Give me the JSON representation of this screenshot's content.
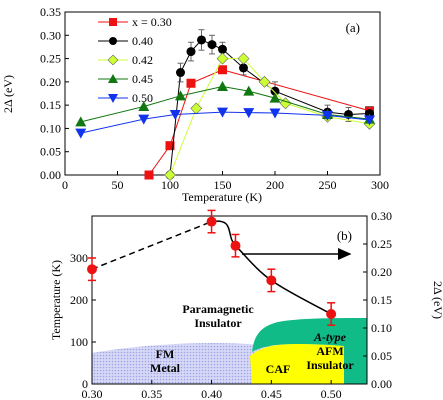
{
  "chart_data": [
    {
      "panel_label": "(a)",
      "type": "line",
      "xlabel": "Temperature (K)",
      "ylabel": "2Δ (eV)",
      "xlim": [
        0,
        300
      ],
      "ylim": [
        0.0,
        0.35
      ],
      "xticks": [
        "0",
        "50",
        "100",
        "150",
        "200",
        "250",
        "300"
      ],
      "yticks": [
        "0.00",
        "0.05",
        "0.10",
        "0.15",
        "0.20",
        "0.25",
        "0.30",
        "0.35"
      ],
      "legend_position": "top-left",
      "legend_prefix": "x = ",
      "series": [
        {
          "name": "0.30",
          "color": "#ee1111",
          "marker": "square",
          "points": [
            [
              80,
              0.0
            ],
            [
              100,
              0.063
            ],
            [
              120,
              0.197
            ],
            [
              150,
              0.226
            ],
            [
              290,
              0.138
            ]
          ]
        },
        {
          "name": "0.40",
          "color": "#000000",
          "marker": "circle",
          "points": [
            [
              100,
              0.0
            ],
            [
              110,
              0.22
            ],
            [
              120,
              0.265
            ],
            [
              130,
              0.29
            ],
            [
              140,
              0.28
            ],
            [
              150,
              0.27
            ],
            [
              170,
              0.23
            ],
            [
              200,
              0.18
            ],
            [
              250,
              0.135
            ],
            [
              270,
              0.13
            ],
            [
              290,
              0.132
            ]
          ],
          "errors": [
            0,
            0.02,
            0.02,
            0.022,
            0.02,
            0.015,
            0.015,
            0.02,
            0.015,
            0.015,
            0.015
          ]
        },
        {
          "name": "0.42",
          "color": "#ccff33",
          "marker": "diamond",
          "points": [
            [
              100,
              0.0
            ],
            [
              125,
              0.143
            ],
            [
              150,
              0.25
            ],
            [
              170,
              0.25
            ],
            [
              190,
              0.2
            ],
            [
              210,
              0.154
            ],
            [
              250,
              0.125
            ],
            [
              290,
              0.11
            ]
          ]
        },
        {
          "name": "0.45",
          "color": "#117711",
          "marker": "triangle-up",
          "points": [
            [
              15,
              0.114
            ],
            [
              75,
              0.147
            ],
            [
              110,
              0.17
            ],
            [
              150,
              0.19
            ],
            [
              175,
              0.18
            ],
            [
              200,
              0.165
            ],
            [
              250,
              0.13
            ],
            [
              290,
              0.12
            ]
          ]
        },
        {
          "name": "0.50",
          "color": "#1133ee",
          "marker": "triangle-down",
          "points": [
            [
              15,
              0.09
            ],
            [
              75,
              0.12
            ],
            [
              105,
              0.13
            ],
            [
              150,
              0.135
            ],
            [
              175,
              0.134
            ],
            [
              200,
              0.133
            ],
            [
              250,
              0.128
            ],
            [
              290,
              0.118
            ]
          ]
        }
      ]
    },
    {
      "panel_label": "(b)",
      "type": "phase-diagram",
      "ylabel_left": "Temperature (K)",
      "ylabel_right": "2Δ (eV)",
      "xlim": [
        0.3,
        0.53
      ],
      "ylim_left": [
        0,
        400
      ],
      "ylim_right": [
        0.0,
        0.3
      ],
      "xticks": [
        "0.30",
        "0.35",
        "0.40",
        "0.45",
        "0.50"
      ],
      "yticks_left": [
        "0",
        "100",
        "200",
        "300"
      ],
      "yticks_right": [
        "0.00",
        "0.05",
        "0.10",
        "0.15",
        "0.20",
        "0.25",
        "0.30"
      ],
      "regions": [
        {
          "label_lines": [
            "FM",
            "Metal"
          ],
          "color": "#c4c8f4"
        },
        {
          "label_lines": [
            "CAF"
          ],
          "color": "#ffff00"
        },
        {
          "label_lines": [
            "A-type",
            "AFM",
            "Insulator"
          ],
          "color": "#11bb88"
        },
        {
          "label_lines": [
            "Paramagnetic",
            "Insulator"
          ],
          "color": "#ffffff"
        }
      ],
      "gap_series": {
        "color": "#ee1111",
        "points": [
          [
            0.3,
            0.205
          ],
          [
            0.4,
            0.29
          ],
          [
            0.42,
            0.247
          ],
          [
            0.45,
            0.185
          ],
          [
            0.5,
            0.125
          ]
        ],
        "errors": [
          0.02,
          0.02,
          0.02,
          0.02,
          0.02
        ],
        "dashed_segment": [
          0,
          1
        ]
      },
      "arrow": "right-axis"
    }
  ]
}
